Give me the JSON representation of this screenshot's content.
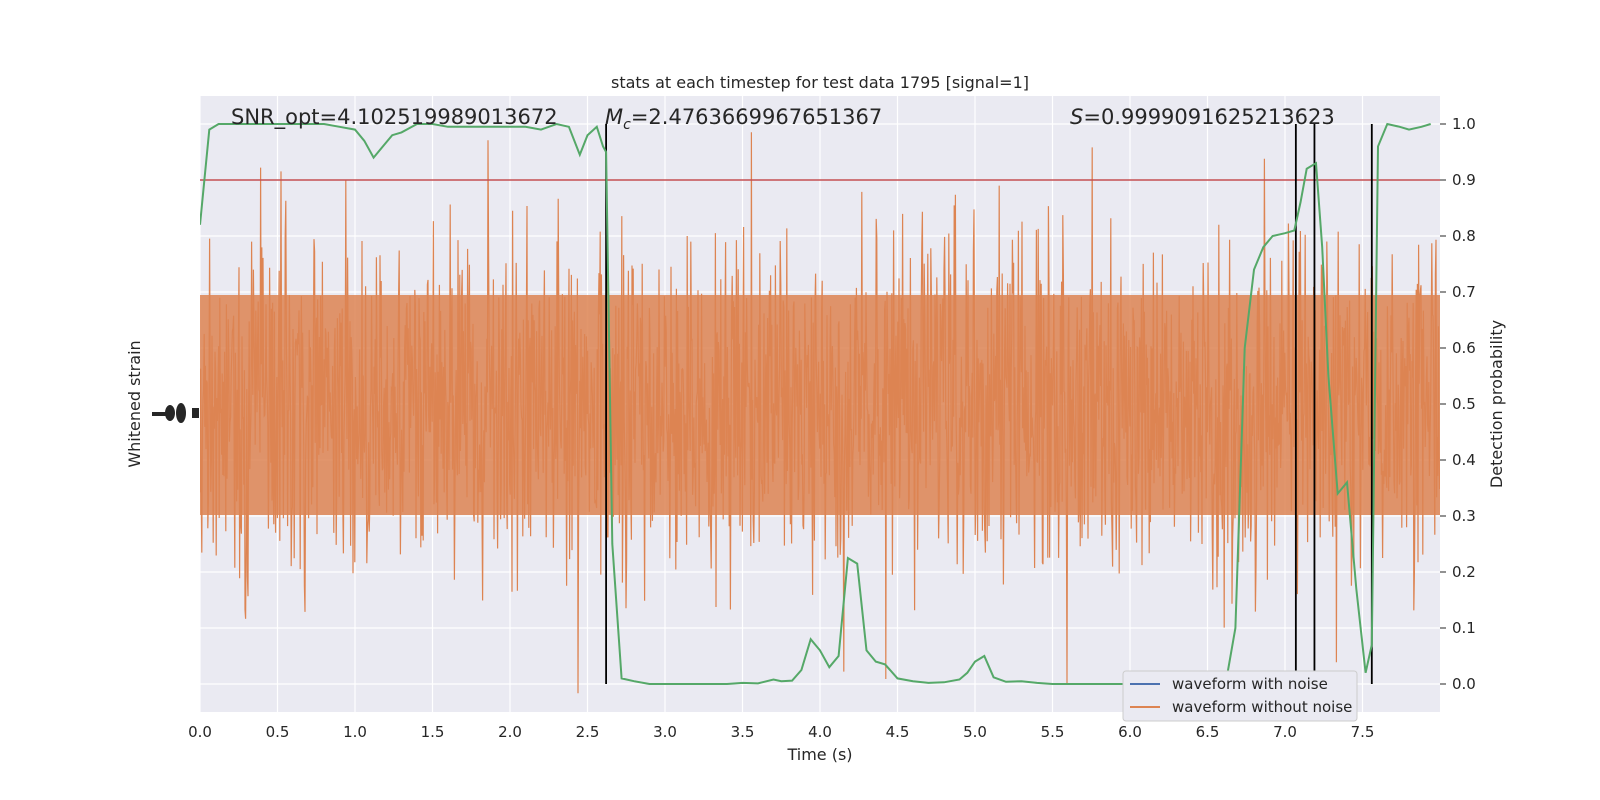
{
  "chart_data": {
    "type": "line",
    "title": "stats at each timestep for test data 1795 [signal=1]",
    "xlabel": "Time (s)",
    "ylabel_left": "Whitened strain",
    "ylabel_right": "Detection probability",
    "xlim": [
      0,
      8
    ],
    "ylim_right": [
      -0.05,
      1.05
    ],
    "x_ticks": [
      "0.0",
      "0.5",
      "1.0",
      "1.5",
      "2.0",
      "2.5",
      "3.0",
      "3.5",
      "4.0",
      "4.5",
      "5.0",
      "5.5",
      "6.0",
      "6.5",
      "7.0",
      "7.5"
    ],
    "y_right_ticks": [
      "0.0",
      "0.1",
      "0.2",
      "0.3",
      "0.4",
      "0.5",
      "0.6",
      "0.7",
      "0.8",
      "0.9",
      "1.0"
    ],
    "annotations": {
      "snr": "SNR_opt=4.102519989013672",
      "mc_symbol": "M",
      "mc_sub": "c",
      "mc_value": "=2.4763669967651367",
      "s_symbol": "S",
      "s_value": "=0.9999091625213623"
    },
    "threshold": 0.9,
    "vertical_lines_x": [
      2.62,
      7.07,
      7.19,
      7.56
    ],
    "legend": {
      "position": "lower-right",
      "entries": [
        {
          "name": "waveform with noise",
          "color": "#4c72b0"
        },
        {
          "name": "waveform without noise",
          "color": "#dd8452"
        }
      ]
    },
    "series": [
      {
        "name": "detection probability",
        "color": "#55a868",
        "points": [
          [
            0.0,
            0.82
          ],
          [
            0.06,
            0.99
          ],
          [
            0.12,
            1.0
          ],
          [
            0.2,
            1.0
          ],
          [
            0.3,
            1.0
          ],
          [
            0.4,
            1.0
          ],
          [
            0.5,
            1.0
          ],
          [
            0.6,
            1.0
          ],
          [
            0.7,
            1.0
          ],
          [
            0.8,
            1.0
          ],
          [
            0.9,
            0.995
          ],
          [
            1.0,
            0.99
          ],
          [
            1.06,
            0.97
          ],
          [
            1.12,
            0.94
          ],
          [
            1.18,
            0.96
          ],
          [
            1.24,
            0.98
          ],
          [
            1.3,
            0.985
          ],
          [
            1.4,
            1.0
          ],
          [
            1.5,
            1.0
          ],
          [
            1.6,
            0.995
          ],
          [
            1.7,
            0.995
          ],
          [
            1.8,
            0.995
          ],
          [
            1.9,
            0.995
          ],
          [
            2.0,
            0.995
          ],
          [
            2.1,
            0.995
          ],
          [
            2.2,
            0.99
          ],
          [
            2.3,
            1.0
          ],
          [
            2.38,
            0.995
          ],
          [
            2.45,
            0.945
          ],
          [
            2.5,
            0.98
          ],
          [
            2.56,
            0.995
          ],
          [
            2.6,
            0.96
          ],
          [
            2.62,
            0.95
          ],
          [
            2.66,
            0.25
          ],
          [
            2.72,
            0.01
          ],
          [
            2.8,
            0.005
          ],
          [
            2.9,
            0.0
          ],
          [
            3.0,
            0.0
          ],
          [
            3.2,
            0.0
          ],
          [
            3.4,
            0.0
          ],
          [
            3.5,
            0.002
          ],
          [
            3.6,
            0.001
          ],
          [
            3.7,
            0.008
          ],
          [
            3.75,
            0.005
          ],
          [
            3.82,
            0.006
          ],
          [
            3.88,
            0.025
          ],
          [
            3.94,
            0.08
          ],
          [
            4.0,
            0.06
          ],
          [
            4.06,
            0.03
          ],
          [
            4.12,
            0.05
          ],
          [
            4.18,
            0.225
          ],
          [
            4.24,
            0.215
          ],
          [
            4.3,
            0.06
          ],
          [
            4.36,
            0.04
          ],
          [
            4.42,
            0.035
          ],
          [
            4.5,
            0.01
          ],
          [
            4.6,
            0.005
          ],
          [
            4.7,
            0.002
          ],
          [
            4.8,
            0.003
          ],
          [
            4.9,
            0.008
          ],
          [
            4.95,
            0.02
          ],
          [
            5.0,
            0.04
          ],
          [
            5.06,
            0.05
          ],
          [
            5.12,
            0.012
          ],
          [
            5.2,
            0.004
          ],
          [
            5.3,
            0.005
          ],
          [
            5.4,
            0.002
          ],
          [
            5.5,
            0.0
          ],
          [
            5.8,
            0.0
          ],
          [
            6.0,
            0.0
          ],
          [
            6.3,
            0.0
          ],
          [
            6.5,
            0.0
          ],
          [
            6.62,
            0.005
          ],
          [
            6.68,
            0.1
          ],
          [
            6.74,
            0.6
          ],
          [
            6.8,
            0.74
          ],
          [
            6.86,
            0.78
          ],
          [
            6.92,
            0.8
          ],
          [
            7.0,
            0.805
          ],
          [
            7.06,
            0.81
          ],
          [
            7.1,
            0.86
          ],
          [
            7.14,
            0.92
          ],
          [
            7.2,
            0.93
          ],
          [
            7.24,
            0.78
          ],
          [
            7.28,
            0.55
          ],
          [
            7.34,
            0.34
          ],
          [
            7.4,
            0.36
          ],
          [
            7.46,
            0.17
          ],
          [
            7.52,
            0.02
          ],
          [
            7.56,
            0.07
          ],
          [
            7.6,
            0.96
          ],
          [
            7.66,
            1.0
          ],
          [
            7.74,
            0.995
          ],
          [
            7.8,
            0.99
          ],
          [
            7.88,
            0.995
          ],
          [
            7.94,
            1.0
          ]
        ]
      }
    ]
  }
}
